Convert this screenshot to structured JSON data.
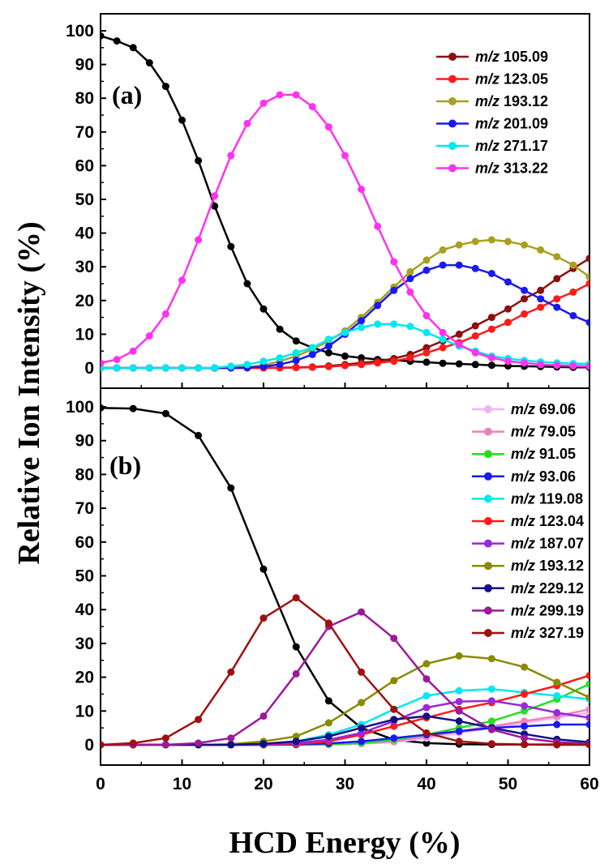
{
  "figure": {
    "xlabel": "HCD Energy (%)",
    "ylabel": "Relative Ion Intensity (%)"
  },
  "chart_data": [
    {
      "type": "line",
      "panel_label": "(a)",
      "xlim": [
        0,
        60
      ],
      "ylim": [
        0,
        100
      ],
      "x_ticks": [
        0,
        10,
        20,
        30,
        40,
        50,
        60
      ],
      "y_ticks": [
        0,
        10,
        20,
        30,
        40,
        50,
        60,
        70,
        80,
        90,
        100
      ],
      "legend_position": "top-right",
      "x": [
        0,
        2,
        4,
        6,
        8,
        10,
        12,
        14,
        16,
        18,
        20,
        22,
        24,
        26,
        28,
        30,
        32,
        34,
        36,
        38,
        40,
        42,
        44,
        46,
        48,
        50,
        52,
        54,
        56,
        58,
        60
      ],
      "series": [
        {
          "name": "",
          "color": "#000000",
          "values": [
            98.5,
            97,
            95,
            90.5,
            83.5,
            73.5,
            61.5,
            48,
            36,
            25,
            17.5,
            11.5,
            8,
            6,
            4.5,
            3.5,
            3,
            2.5,
            2.3,
            2,
            1.7,
            1.4,
            1.2,
            1,
            0.8,
            0.6,
            0.5,
            0.4,
            0.3,
            0.2,
            0.2
          ]
        },
        {
          "name": "m/z 105.09",
          "color": "#8b1010",
          "values": [
            0,
            0,
            0,
            0,
            0,
            0,
            0,
            0,
            0,
            0,
            0,
            0.1,
            0.2,
            0.3,
            0.6,
            1,
            1.5,
            2,
            2.8,
            4,
            6,
            8,
            10,
            12.5,
            15,
            17.5,
            20.5,
            23,
            26.5,
            29.5,
            32.5
          ]
        },
        {
          "name": "m/z 123.05",
          "color": "#ff1a1a",
          "values": [
            0,
            0,
            0,
            0,
            0,
            0,
            0,
            0,
            0,
            0,
            0,
            0,
            0.1,
            0.2,
            0.4,
            0.7,
            1,
            1.5,
            2,
            3,
            4.5,
            6,
            7.5,
            9.5,
            11.5,
            13.5,
            16,
            18,
            20.5,
            22.5,
            25
          ]
        },
        {
          "name": "m/z 193.12",
          "color": "#a8a020",
          "values": [
            0,
            0,
            0,
            0,
            0,
            0,
            0,
            0,
            0.1,
            0.3,
            0.8,
            2,
            3.5,
            5.5,
            8,
            11,
            15,
            19.5,
            24,
            28.5,
            32,
            35,
            36.5,
            37.5,
            38,
            37.5,
            36.5,
            35,
            33,
            30.5,
            27
          ]
        },
        {
          "name": "m/z 201.09",
          "color": "#1a1aee",
          "values": [
            0,
            0,
            0,
            0,
            0,
            0,
            0,
            0,
            0,
            0.1,
            0.4,
            1,
            2.2,
            4,
            6.5,
            10,
            14,
            18.5,
            23,
            26.5,
            29,
            30.5,
            30.5,
            29.5,
            28,
            25.5,
            23,
            20.5,
            18,
            15.5,
            13.5
          ]
        },
        {
          "name": "m/z 271.17",
          "color": "#00e8f0",
          "values": [
            0,
            0,
            0,
            0,
            0,
            0,
            0,
            0.1,
            0.5,
            1,
            2,
            3,
            4.5,
            6,
            8.5,
            10.5,
            12,
            13,
            13,
            12.3,
            10.5,
            8.5,
            6.5,
            5,
            3.5,
            2.8,
            2.2,
            1.8,
            1.5,
            1.3,
            1.2
          ]
        },
        {
          "name": "m/z 313.22",
          "color": "#ff33ee",
          "values": [
            1.5,
            2.5,
            5,
            9.5,
            16,
            26,
            38,
            51,
            63,
            72.5,
            78.5,
            81,
            81,
            77.5,
            71.5,
            63,
            53,
            42,
            31.5,
            22.5,
            15.5,
            10.5,
            7,
            4.5,
            3,
            2,
            1.5,
            1,
            0.8,
            0.6,
            0.5
          ]
        }
      ]
    },
    {
      "type": "line",
      "panel_label": "(b)",
      "xlim": [
        0,
        60
      ],
      "ylim": [
        0,
        100
      ],
      "x_ticks": [
        0,
        10,
        20,
        30,
        40,
        50,
        60
      ],
      "y_ticks": [
        0,
        10,
        20,
        30,
        40,
        50,
        60,
        70,
        80,
        90,
        100
      ],
      "legend_position": "top-right",
      "x": [
        0,
        4,
        8,
        12,
        16,
        20,
        24,
        28,
        32,
        36,
        40,
        44,
        48,
        52,
        56,
        60
      ],
      "series": [
        {
          "name": "",
          "color": "#000000",
          "values": [
            99.7,
            99.5,
            98,
            91.5,
            76,
            52,
            29,
            13,
            5,
            1.5,
            0.5,
            0.2,
            0.1,
            0.1,
            0.1,
            0.1
          ]
        },
        {
          "name": "m/z 69.06",
          "color": "#f0b4f0",
          "values": [
            0,
            0,
            0,
            0,
            0,
            0,
            0,
            0.1,
            0.3,
            0.8,
            2,
            3.5,
            5,
            6.5,
            8,
            9.5
          ]
        },
        {
          "name": "m/z 79.05",
          "color": "#ee80c0",
          "values": [
            0,
            0,
            0,
            0,
            0,
            0,
            0,
            0.1,
            0.4,
            1,
            2.5,
            4,
            5.5,
            7,
            8.5,
            10.5
          ]
        },
        {
          "name": "m/z 91.05",
          "color": "#22e022",
          "values": [
            0,
            0,
            0,
            0,
            0,
            0,
            0,
            0.2,
            0.5,
            1.5,
            3,
            5,
            7,
            10,
            13.5,
            18
          ]
        },
        {
          "name": "m/z 93.06",
          "color": "#1a1aee",
          "values": [
            0,
            0,
            0,
            0,
            0,
            0,
            0.1,
            0.4,
            1,
            2,
            3,
            4,
            5,
            5.5,
            6,
            6
          ]
        },
        {
          "name": "m/z 119.08",
          "color": "#00e8f0",
          "values": [
            0,
            0,
            0,
            0,
            0,
            0.2,
            1,
            3,
            6,
            10.5,
            14.5,
            16,
            16.5,
            15.5,
            14.5,
            13.5
          ]
        },
        {
          "name": "m/z 123.04",
          "color": "#ff1a1a",
          "values": [
            0,
            0,
            0,
            0,
            0,
            0,
            0.2,
            1,
            3,
            5.5,
            8,
            10.5,
            12.5,
            15,
            17.5,
            20.5
          ]
        },
        {
          "name": "m/z 187.07",
          "color": "#9a28d8",
          "values": [
            0,
            0,
            0,
            0,
            0,
            0.2,
            0.5,
            1.5,
            3.5,
            7,
            11,
            12.8,
            13,
            11.5,
            9.5,
            8
          ]
        },
        {
          "name": "m/z 193.12",
          "color": "#8a8a00",
          "values": [
            0,
            0,
            0,
            0,
            0.2,
            1,
            2.5,
            6.5,
            12.5,
            19,
            24,
            26.3,
            25.5,
            23,
            18.5,
            14
          ]
        },
        {
          "name": "m/z 229.12",
          "color": "#10108a",
          "values": [
            0,
            0,
            0,
            0,
            0,
            0.3,
            1,
            2.5,
            5,
            7.5,
            8.5,
            7,
            5,
            3.2,
            1.6,
            0.8
          ]
        },
        {
          "name": "m/z 299.19",
          "color": "#9a1a9a",
          "values": [
            0,
            0,
            0,
            0.5,
            2,
            8.5,
            21,
            35,
            39.3,
            31.5,
            19.5,
            10,
            4.5,
            2,
            0.8,
            0.3
          ]
        },
        {
          "name": "m/z 327.19",
          "color": "#a01010",
          "values": [
            0,
            0.5,
            2,
            7.5,
            21.5,
            37.5,
            43.5,
            36,
            21.5,
            10.5,
            3.5,
            1,
            0.3,
            0.1,
            0,
            0
          ]
        }
      ]
    }
  ]
}
